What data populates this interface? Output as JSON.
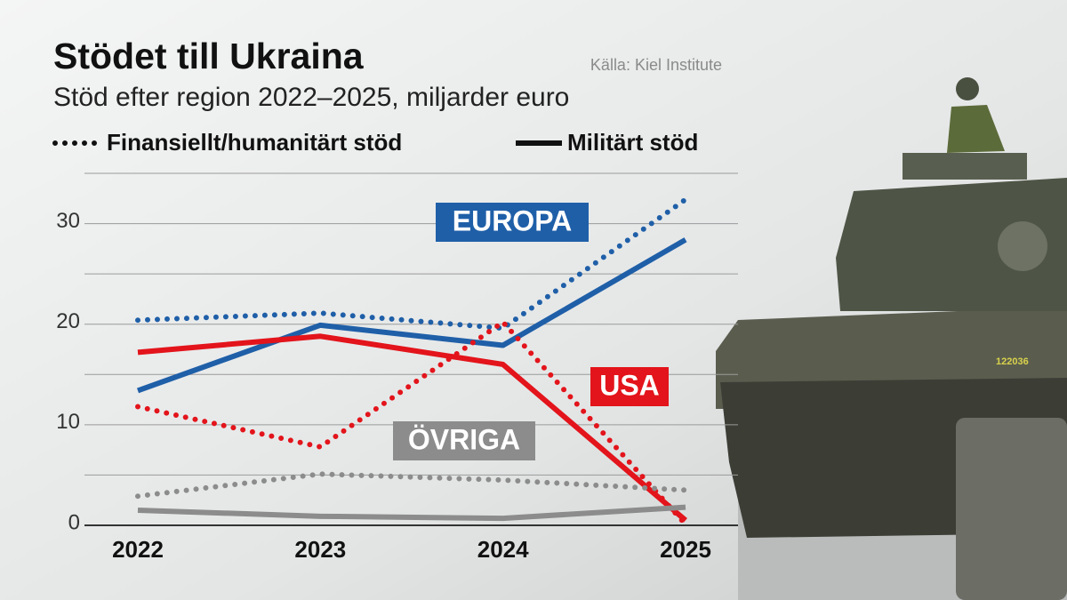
{
  "chart_data": {
    "type": "line",
    "title": "Stödet till Ukraina",
    "subtitle": "Stöd efter region 2022–2025, miljarder euro",
    "source": "Källa: Kiel Institute",
    "categories": [
      "2022",
      "2023",
      "2024",
      "2025"
    ],
    "ylim": [
      0,
      35
    ],
    "yticks": [
      0,
      10,
      20,
      30
    ],
    "grid_lines": [
      0,
      5,
      10,
      15,
      20,
      25,
      30,
      35
    ],
    "grid": true,
    "styles": [
      {
        "name": "Finansiellt/humanitärt stöd",
        "dash": "dotted"
      },
      {
        "name": "Militärt stöd",
        "dash": "solid"
      }
    ],
    "series": [
      {
        "name": "EUROPA",
        "color": "#1f5fa8",
        "lines": [
          {
            "style": "dotted",
            "values": [
              20.4,
              21.1,
              19.6,
              32.4
            ]
          },
          {
            "style": "solid",
            "values": [
              13.4,
              19.9,
              17.9,
              28.4
            ]
          }
        ]
      },
      {
        "name": "USA",
        "color": "#e3141b",
        "lines": [
          {
            "style": "dotted",
            "values": [
              11.8,
              7.8,
              20.2,
              0.1
            ]
          },
          {
            "style": "solid",
            "values": [
              17.2,
              18.8,
              16.0,
              0.5
            ]
          }
        ]
      },
      {
        "name": "ÖVRIGA",
        "color": "#8c8c8c",
        "lines": [
          {
            "style": "dotted",
            "values": [
              2.9,
              5.1,
              4.5,
              3.5
            ]
          },
          {
            "style": "solid",
            "values": [
              1.5,
              0.9,
              0.7,
              1.8
            ]
          }
        ]
      }
    ]
  }
}
